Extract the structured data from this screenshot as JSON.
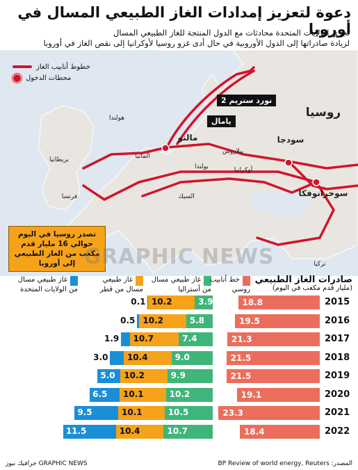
{
  "title": "دعوة لتعزيز إمدادات الغاز الطبيعي المسال في أوروبا",
  "subtitle_lines": [
    "تجري الولايات المتحدة محادثات مع الدول المنتجة للغاز الطبيعي المسال",
    "لزيادة صادراتها إلى الدول الأوروبية في حال أدى غزو روسيا لأوكرانيا إلى نقص الغاز في أوروبا"
  ],
  "legend": {
    "pipelines": "خطوط أنابيب الغاز",
    "entry_points": "محطات الدخول"
  },
  "map": {
    "labels": {
      "russia": "روسيا",
      "britain": "بريطانيا",
      "netherlands": "هولندا",
      "germany": "ألمانيا",
      "france": "فرنسا",
      "poland": "بولندا",
      "belarus": "بيلاروس",
      "ukraine": "أوكرانيا",
      "slovakia": "السيك",
      "turkey": "تركيا",
      "mallnow": "مالنو",
      "sudzha": "سودجا",
      "sokhranovka": "سوخرانوفكا"
    },
    "tags": {
      "nord_stream": "نورد ستريم 2",
      "yamal": "يامال"
    }
  },
  "note": "تصدر روسيا في اليوم حوالي 16 مليار قدم مكعب من الغاز الطبيعي إلى أوروبا",
  "watermark": "GRAPHIC NEWS",
  "headers": {
    "us": [
      "غاز طبيعي مسال",
      "من الولايات المتحدة"
    ],
    "qatar": [
      "غاز طبيعي",
      "مسال من قطر"
    ],
    "australia": [
      "غاز طبيعي مسال",
      "من أستراليا"
    ],
    "pipeline": [
      "خط أنابيب",
      "روسي"
    ],
    "exports_title": "صادرات الغاز الطبيعي",
    "exports_unit": "(مليار قدم مكعب في اليوم)"
  },
  "colors": {
    "us": "#1b8fd6",
    "qatar": "#f6a21a",
    "australia": "#3fb57a",
    "pipeline": "#ed6d5c",
    "map_red": "#d2142b"
  },
  "chart_data": {
    "type": "bar",
    "categories": [
      "2015",
      "2016",
      "2017",
      "2018",
      "2019",
      "2020",
      "2021",
      "2022"
    ],
    "series": [
      {
        "name": "غاز طبيعي مسال من الولايات المتحدة",
        "values": [
          0.1,
          0.5,
          1.9,
          3.0,
          5.0,
          6.5,
          9.5,
          11.5
        ]
      },
      {
        "name": "غاز طبيعي مسال من قطر",
        "values": [
          10.2,
          10.2,
          10.7,
          10.4,
          10.2,
          10.1,
          10.1,
          10.4
        ]
      },
      {
        "name": "غاز طبيعي مسال من أستراليا",
        "values": [
          3.9,
          5.8,
          7.4,
          9.0,
          9.9,
          10.2,
          10.5,
          10.7
        ]
      },
      {
        "name": "خط أنابيب روسي",
        "values": [
          18.8,
          19.5,
          21.3,
          21.5,
          21.5,
          19.1,
          23.3,
          18.4
        ]
      }
    ],
    "labels": {
      "us": [
        "0.1",
        "0.5",
        "1.9",
        "3.0",
        "5.0",
        "6.5",
        "9.5",
        "11.5"
      ],
      "qatar": [
        "10.2",
        "10.2",
        "10.7",
        "10.4",
        "10.2",
        "10.1",
        "10.1",
        "10.4"
      ],
      "australia": [
        "3.9",
        "5.8",
        "7.4",
        "9.0",
        "9.9",
        "10.2",
        "10.5",
        "10.7"
      ],
      "pipeline": [
        "18.8",
        "19.5",
        "21.3",
        "21.5",
        "21.5",
        "19.1",
        "23.3",
        "18.4"
      ]
    },
    "title": "صادرات الغاز الطبيعي",
    "ylabel": "(مليار قدم مكعب في اليوم)"
  },
  "footer": {
    "source": "المصدر: BP Review of world energy, Reuters",
    "credit": "GRAPHIC NEWS جرافيك نيوز"
  }
}
